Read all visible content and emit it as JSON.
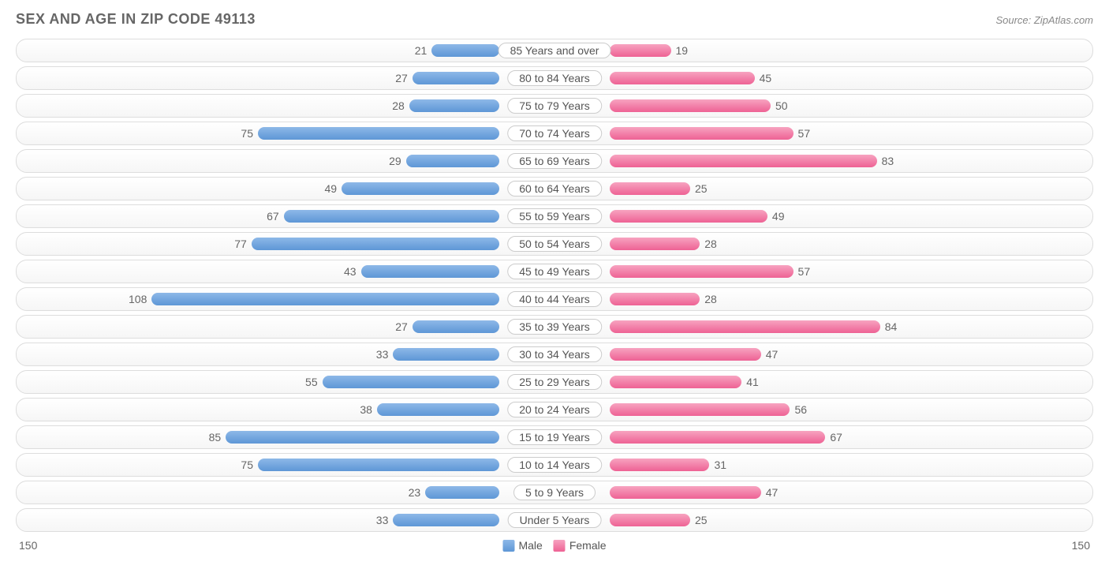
{
  "title": "SEX AND AGE IN ZIP CODE 49113",
  "source": "Source: ZipAtlas.com",
  "chart": {
    "type": "population-pyramid",
    "axis_max": 150,
    "axis_label_left": "150",
    "axis_label_right": "150",
    "male_color_top": "#8db8e8",
    "male_color_bottom": "#5e97d6",
    "female_color_top": "#f7a3c0",
    "female_color_bottom": "#ee6294",
    "row_border_color": "#dddddd",
    "row_bg_top": "#ffffff",
    "row_bg_bottom": "#f6f6f6",
    "text_color": "#666666",
    "label_bg": "#ffffff",
    "label_border": "#cccccc",
    "categories": [
      {
        "label": "85 Years and over",
        "male": 21,
        "female": 19
      },
      {
        "label": "80 to 84 Years",
        "male": 27,
        "female": 45
      },
      {
        "label": "75 to 79 Years",
        "male": 28,
        "female": 50
      },
      {
        "label": "70 to 74 Years",
        "male": 75,
        "female": 57
      },
      {
        "label": "65 to 69 Years",
        "male": 29,
        "female": 83
      },
      {
        "label": "60 to 64 Years",
        "male": 49,
        "female": 25
      },
      {
        "label": "55 to 59 Years",
        "male": 67,
        "female": 49
      },
      {
        "label": "50 to 54 Years",
        "male": 77,
        "female": 28
      },
      {
        "label": "45 to 49 Years",
        "male": 43,
        "female": 57
      },
      {
        "label": "40 to 44 Years",
        "male": 108,
        "female": 28
      },
      {
        "label": "35 to 39 Years",
        "male": 27,
        "female": 84
      },
      {
        "label": "30 to 34 Years",
        "male": 33,
        "female": 47
      },
      {
        "label": "25 to 29 Years",
        "male": 55,
        "female": 41
      },
      {
        "label": "20 to 24 Years",
        "male": 38,
        "female": 56
      },
      {
        "label": "15 to 19 Years",
        "male": 85,
        "female": 67
      },
      {
        "label": "10 to 14 Years",
        "male": 75,
        "female": 31
      },
      {
        "label": "5 to 9 Years",
        "male": 23,
        "female": 47
      },
      {
        "label": "Under 5 Years",
        "male": 33,
        "female": 25
      }
    ]
  },
  "legend": {
    "male": "Male",
    "female": "Female"
  }
}
